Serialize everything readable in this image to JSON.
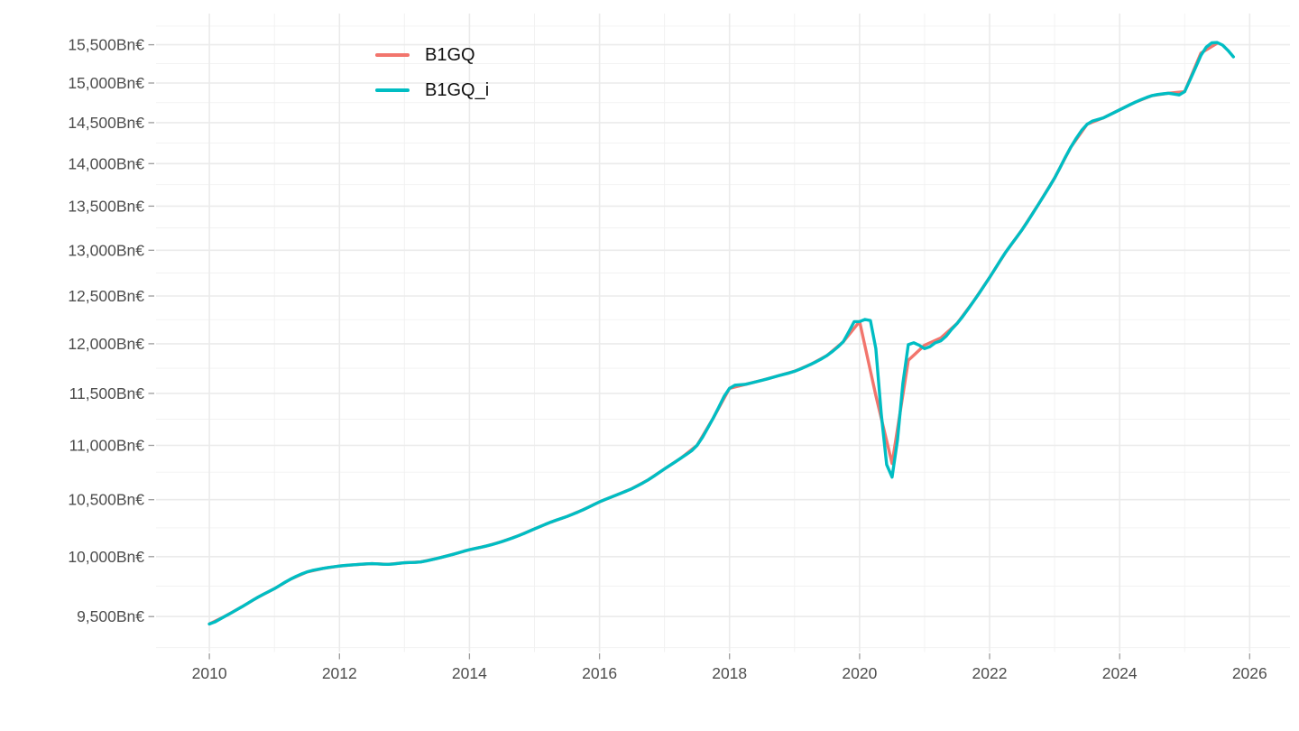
{
  "chart_data": {
    "type": "line",
    "title": "",
    "y_scale": "log",
    "unit": "Bn€",
    "x_axis": {
      "range": [
        2009.18,
        2026.62
      ],
      "major_ticks": [
        2010,
        2012,
        2014,
        2016,
        2018,
        2020,
        2022,
        2024,
        2026
      ],
      "tick_labels": [
        "2010",
        "2012",
        "2014",
        "2016",
        "2018",
        "2020",
        "2022",
        "2024",
        "2026"
      ],
      "minor_ticks": [
        2011,
        2013,
        2015,
        2017,
        2019,
        2021,
        2023,
        2025
      ]
    },
    "y_axis": {
      "range": [
        9216,
        15920
      ],
      "major_ticks": [
        9500,
        10000,
        10500,
        11000,
        11500,
        12000,
        12500,
        13000,
        13500,
        14000,
        14500,
        15000,
        15500
      ],
      "tick_labels": [
        "9,500Bn€",
        "10,000Bn€",
        "10,500Bn€",
        "11,000Bn€",
        "11,500Bn€",
        "12,000Bn€",
        "12,500Bn€",
        "13,000Bn€",
        "13,500Bn€",
        "14,000Bn€",
        "14,500Bn€",
        "15,000Bn€",
        "15,500Bn€"
      ],
      "minor_ticks": [
        9250,
        9750,
        10250,
        10750,
        11250,
        11750,
        12250,
        12750,
        13250,
        13750,
        14250,
        14750,
        15250,
        15750
      ]
    },
    "series": [
      {
        "name": "B1GQ",
        "color": "#F2756D",
        "kind": "quarterly",
        "x_start": 2010.0,
        "x_step": 0.25,
        "values": [
          9440,
          9505,
          9580,
          9660,
          9730,
          9810,
          9870,
          9900,
          9920,
          9932,
          9940,
          9935,
          9948,
          9955,
          9985,
          10020,
          10060,
          10090,
          10130,
          10180,
          10240,
          10300,
          10350,
          10410,
          10480,
          10540,
          10600,
          10680,
          10780,
          10880,
          11000,
          11260,
          11550,
          11590,
          11630,
          11675,
          11720,
          11790,
          11880,
          12020,
          12230,
          11480,
          10830,
          11830,
          11985,
          12060,
          12210,
          12440,
          12700,
          12980,
          13230,
          13520,
          13830,
          14200,
          14480,
          14560,
          14660,
          14760,
          14840,
          14870,
          14890,
          15390,
          15520
        ]
      },
      {
        "name": "B1GQ_i",
        "color": "#00BDC3",
        "kind": "monthly-interpolated",
        "x_start": 2010.0,
        "x_end": 2025.75,
        "overrides": [
          {
            "x_start": 2020.0,
            "values": [
              12230,
              12252,
              12240,
              11950,
              11300,
              10820,
              10705,
              11050,
              11600,
              11990,
              12010,
              11985,
              11950,
              11970,
              12010,
              12030,
              12080,
              12150,
              12210
            ]
          },
          {
            "x_start": 2025.0,
            "values": [
              14890,
              15040,
              15200,
              15360,
              15470,
              15525,
              15530,
              15495,
              15425,
              15340
            ]
          }
        ]
      }
    ],
    "legend": {
      "position": "inside-top-left",
      "entries": [
        "B1GQ",
        "B1GQ_i"
      ]
    }
  },
  "colors": {
    "background": "#FFFFFF",
    "grid_major": "#EBEBEB",
    "grid_minor": "#F1F1F1",
    "axis_text": "#4D4D4D",
    "tick_mark": "#9A9A9A",
    "legend_text": "#111111"
  }
}
